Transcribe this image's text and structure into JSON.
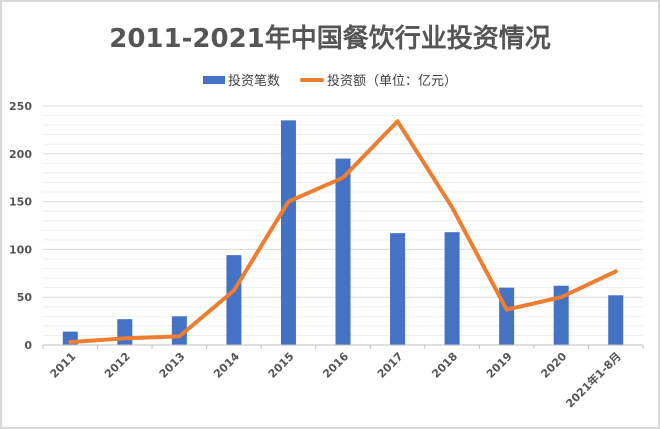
{
  "chart_data": {
    "type": "bar",
    "title": "2011-2021年中国餐饮行业投资情况",
    "xlabel": "",
    "ylabel": "",
    "ylim": [
      0,
      250
    ],
    "yticks": [
      0,
      50,
      100,
      150,
      200,
      250
    ],
    "grid": true,
    "legend_position": "top",
    "categories": [
      "2011",
      "2012",
      "2013",
      "2014",
      "2015",
      "2016",
      "2017",
      "2018",
      "2019",
      "2020",
      "2021年1-8月"
    ],
    "series": [
      {
        "name": "投资笔数",
        "type": "bar",
        "color": "#4472c4",
        "values": [
          14,
          27,
          30,
          94,
          235,
          195,
          117,
          118,
          60,
          62,
          52
        ]
      },
      {
        "name": "投资额（单位：亿元）",
        "type": "line",
        "color": "#ed7d31",
        "values": [
          3,
          7,
          9,
          57,
          150,
          175,
          234,
          144,
          37,
          50,
          77
        ]
      }
    ]
  },
  "legend": {
    "bar_label": "投资笔数",
    "line_label": "投资额（单位：亿元）"
  },
  "colors": {
    "bar": "#4472c4",
    "line": "#ed7d31",
    "grid": "#d9d9d9",
    "minor_grid": "#efefef",
    "text": "#555555"
  }
}
